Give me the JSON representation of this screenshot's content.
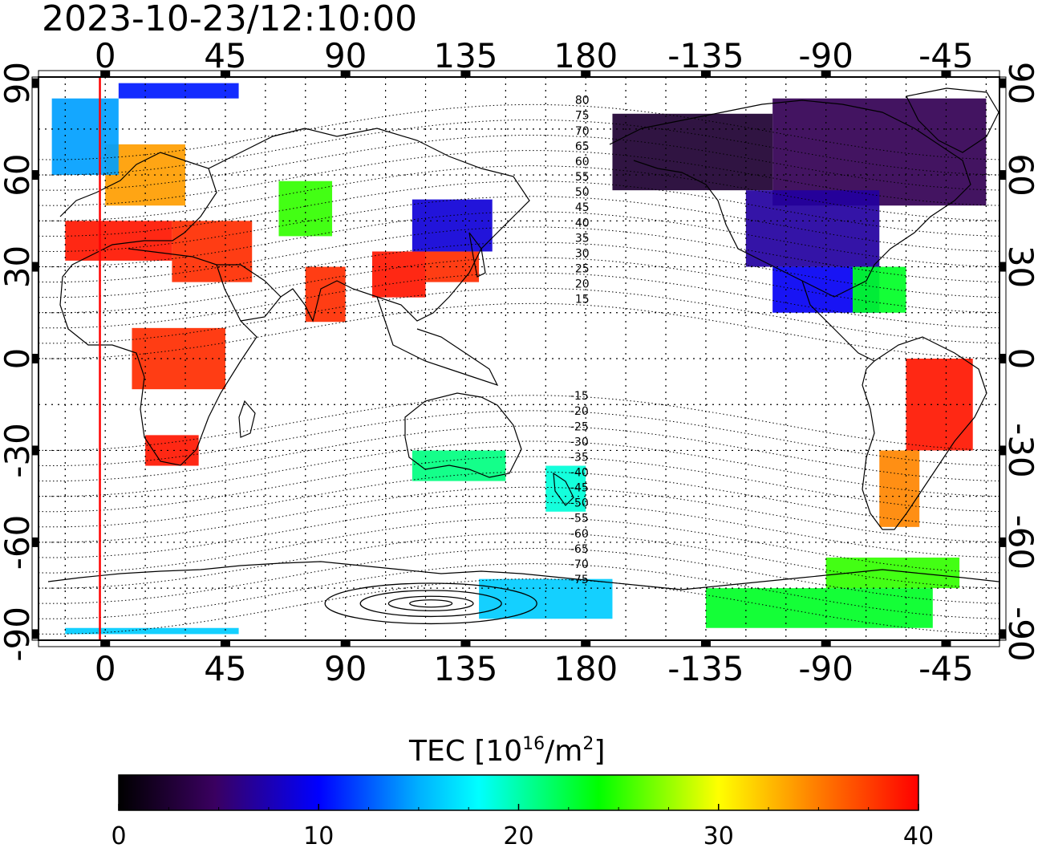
{
  "timestamp": "2023-10-23/12:10:00",
  "map": {
    "lon_ticks_top": [
      "0",
      "45",
      "90",
      "135",
      "180",
      "-135",
      "-90",
      "-45"
    ],
    "lon_ticks_bottom": [
      "0",
      "45",
      "90",
      "135",
      "180",
      "-135",
      "-90",
      "-45"
    ],
    "lon_tick_values": [
      0,
      45,
      90,
      135,
      180,
      225,
      270,
      315
    ],
    "lat_ticks_left": [
      "90",
      "60",
      "30",
      "0",
      "-30",
      "-60",
      "-90"
    ],
    "lat_ticks_right": [
      "90",
      "60",
      "30",
      "0",
      "-30",
      "-60",
      "-90"
    ],
    "lat_tick_values": [
      90,
      60,
      30,
      0,
      -30,
      -60,
      -90
    ],
    "lon_range": [
      -25,
      335
    ],
    "lat_range": [
      -92,
      92
    ],
    "terminator_lon": -2,
    "mlat_labels_north": [
      "80",
      "75",
      "70",
      "65",
      "60",
      "55",
      "50",
      "45",
      "40",
      "35",
      "30",
      "25",
      "20",
      "15"
    ],
    "mlat_labels_south": [
      "-15",
      "-20",
      "-25",
      "-30",
      "-35",
      "-40",
      "-45",
      "-50",
      "-55",
      "-60",
      "-65",
      "-70",
      "-75"
    ],
    "colors": {
      "terminator": "#ff0000",
      "grid": "#000000"
    }
  },
  "colorbar": {
    "title_main": "TEC  [10",
    "title_sup1": "16",
    "title_mid": "/m",
    "title_sup2": "2",
    "title_end": "]",
    "ticks": [
      "0",
      "10",
      "20",
      "30",
      "40"
    ],
    "tick_values": [
      0,
      10,
      20,
      30,
      40
    ],
    "range": [
      0,
      40
    ],
    "palette": [
      "#000000",
      "#3a0060",
      "#0000ff",
      "#00ffff",
      "#00ff00",
      "#ffff00",
      "#ff8000",
      "#ff0000"
    ]
  },
  "tec_regions": [
    {
      "lon": [
        -15,
        25
      ],
      "lat": [
        32,
        45
      ],
      "tec": 39
    },
    {
      "lon": [
        25,
        55
      ],
      "lat": [
        25,
        45
      ],
      "tec": 38
    },
    {
      "lon": [
        0,
        30
      ],
      "lat": [
        50,
        70
      ],
      "tec": 33
    },
    {
      "lon": [
        -20,
        5
      ],
      "lat": [
        60,
        85
      ],
      "tec": 15
    },
    {
      "lon": [
        5,
        50
      ],
      "lat": [
        85,
        90
      ],
      "tec": 12
    },
    {
      "lon": [
        65,
        85
      ],
      "lat": [
        40,
        58
      ],
      "tec": 24
    },
    {
      "lon": [
        75,
        90
      ],
      "lat": [
        12,
        30
      ],
      "tec": 38
    },
    {
      "lon": [
        100,
        120
      ],
      "lat": [
        20,
        35
      ],
      "tec": 39
    },
    {
      "lon": [
        120,
        140
      ],
      "lat": [
        25,
        35
      ],
      "tec": 38
    },
    {
      "lon": [
        115,
        145
      ],
      "lat": [
        35,
        52
      ],
      "tec": 10
    },
    {
      "lon": [
        10,
        45
      ],
      "lat": [
        -10,
        10
      ],
      "tec": 38
    },
    {
      "lon": [
        15,
        35
      ],
      "lat": [
        -35,
        -25
      ],
      "tec": 39
    },
    {
      "lon": [
        115,
        150
      ],
      "lat": [
        -40,
        -30
      ],
      "tec": 20
    },
    {
      "lon": [
        165,
        180
      ],
      "lat": [
        -50,
        -35
      ],
      "tec": 18
    },
    {
      "lon": [
        140,
        190
      ],
      "lat": [
        -85,
        -72
      ],
      "tec": 16
    },
    {
      "lon": [
        -15,
        50
      ],
      "lat": [
        -90,
        -88
      ],
      "tec": 16
    },
    {
      "lon": [
        190,
        250
      ],
      "lat": [
        55,
        80
      ],
      "tec": 3
    },
    {
      "lon": [
        250,
        330
      ],
      "lat": [
        50,
        85
      ],
      "tec": 5
    },
    {
      "lon": [
        240,
        290
      ],
      "lat": [
        30,
        55
      ],
      "tec": 8
    },
    {
      "lon": [
        250,
        290
      ],
      "lat": [
        15,
        30
      ],
      "tec": 11
    },
    {
      "lon": [
        280,
        300
      ],
      "lat": [
        15,
        30
      ],
      "tec": 22
    },
    {
      "lon": [
        300,
        325
      ],
      "lat": [
        -30,
        0
      ],
      "tec": 39
    },
    {
      "lon": [
        290,
        305
      ],
      "lat": [
        -55,
        -30
      ],
      "tec": 34
    },
    {
      "lon": [
        270,
        320
      ],
      "lat": [
        -75,
        -65
      ],
      "tec": 24
    },
    {
      "lon": [
        225,
        310
      ],
      "lat": [
        -88,
        -75
      ],
      "tec": 22
    }
  ]
}
